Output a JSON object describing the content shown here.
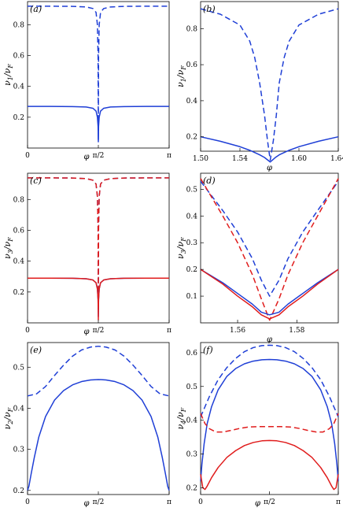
{
  "chart_data": [
    {
      "panel": "(a)",
      "type": "line",
      "xlabel": "φ",
      "ylabel": "v1/vF",
      "xaxis": "phi_range",
      "xlim": [
        0,
        3.14159
      ],
      "ylim": [
        0,
        0.95
      ],
      "xticks": [
        {
          "v": 0,
          "label": "0"
        },
        {
          "v": 1.5708,
          "label": "π/2"
        },
        {
          "v": 3.14159,
          "label": "π"
        }
      ],
      "yticks": [
        {
          "v": 0.2,
          "label": "0.2"
        },
        {
          "v": 0.4,
          "label": "0.4"
        },
        {
          "v": 0.6,
          "label": "0.6"
        },
        {
          "v": 0.8,
          "label": "0.8"
        }
      ],
      "series": [
        {
          "color": "#1f3fd6",
          "dash": false,
          "x": [
            0,
            0.5,
            1.0,
            1.3,
            1.45,
            1.52,
            1.55,
            1.565,
            1.5708,
            1.576,
            1.59,
            1.62,
            1.69,
            1.84,
            2.14,
            2.64,
            3.14159
          ],
          "y": [
            0.27,
            0.27,
            0.269,
            0.266,
            0.258,
            0.24,
            0.2,
            0.14,
            0.04,
            0.14,
            0.2,
            0.24,
            0.258,
            0.266,
            0.269,
            0.27,
            0.27
          ]
        },
        {
          "color": "#1f3fd6",
          "dash": true,
          "x": [
            0,
            0.5,
            1.0,
            1.3,
            1.45,
            1.52,
            1.55,
            1.565,
            1.5708,
            1.576,
            1.59,
            1.62,
            1.69,
            1.84,
            2.14,
            2.64,
            3.14159
          ],
          "y": [
            0.92,
            0.92,
            0.919,
            0.915,
            0.905,
            0.88,
            0.8,
            0.6,
            0.05,
            0.6,
            0.8,
            0.88,
            0.905,
            0.915,
            0.919,
            0.92,
            0.92
          ]
        }
      ]
    },
    {
      "panel": "(b)",
      "type": "line",
      "xlabel": "φ",
      "ylabel": "v1/vF",
      "xaxis": "linear",
      "xlim": [
        1.5,
        1.64
      ],
      "ylim": [
        0.12,
        0.95
      ],
      "xticks": [
        {
          "v": 1.5,
          "label": "1.50"
        },
        {
          "v": 1.54,
          "label": "1.54"
        },
        {
          "v": 1.6,
          "label": "1.60"
        },
        {
          "v": 1.64,
          "label": "1.64"
        }
      ],
      "yticks": [
        {
          "v": 0.2,
          "label": "0.2"
        },
        {
          "v": 0.4,
          "label": "0.4"
        },
        {
          "v": 0.6,
          "label": "0.6"
        },
        {
          "v": 0.8,
          "label": "0.8"
        }
      ],
      "series": [
        {
          "color": "#1f3fd6",
          "dash": false,
          "x": [
            1.5,
            1.52,
            1.54,
            1.55,
            1.56,
            1.565,
            1.5708,
            1.576,
            1.58,
            1.59,
            1.6,
            1.62,
            1.64
          ],
          "y": [
            0.2,
            0.175,
            0.145,
            0.125,
            0.1,
            0.085,
            0.06,
            0.085,
            0.1,
            0.125,
            0.145,
            0.175,
            0.2
          ]
        },
        {
          "color": "#1f3fd6",
          "dash": true,
          "x": [
            1.5,
            1.52,
            1.54,
            1.55,
            1.555,
            1.56,
            1.565,
            1.568,
            1.5708,
            1.574,
            1.577,
            1.58,
            1.585,
            1.59,
            1.6,
            1.62,
            1.64
          ],
          "y": [
            0.91,
            0.88,
            0.82,
            0.73,
            0.64,
            0.5,
            0.32,
            0.18,
            0.07,
            0.18,
            0.32,
            0.5,
            0.64,
            0.73,
            0.82,
            0.88,
            0.91
          ]
        }
      ]
    },
    {
      "panel": "(c)",
      "type": "line",
      "xlabel": "φ",
      "ylabel": "v3/vF",
      "xaxis": "phi_range",
      "xlim": [
        0,
        3.14159
      ],
      "ylim": [
        0,
        0.97
      ],
      "xticks": [
        {
          "v": 0,
          "label": "0"
        },
        {
          "v": 1.5708,
          "label": "π/2"
        },
        {
          "v": 3.14159,
          "label": "π"
        }
      ],
      "yticks": [
        {
          "v": 0.2,
          "label": "0.2"
        },
        {
          "v": 0.4,
          "label": "0.4"
        },
        {
          "v": 0.6,
          "label": "0.6"
        },
        {
          "v": 0.8,
          "label": "0.8"
        }
      ],
      "series": [
        {
          "color": "#1f3fd6",
          "dash": true,
          "x": [
            0,
            0.5,
            1.0,
            1.3,
            1.45,
            1.52,
            1.55,
            1.565,
            1.5708,
            1.576,
            1.59,
            1.62,
            1.69,
            1.84,
            2.14,
            2.64,
            3.14159
          ],
          "y": [
            0.94,
            0.94,
            0.939,
            0.935,
            0.925,
            0.9,
            0.82,
            0.62,
            0.08,
            0.62,
            0.82,
            0.9,
            0.925,
            0.935,
            0.939,
            0.94,
            0.94
          ]
        },
        {
          "color": "#e01c1c",
          "dash": true,
          "x": [
            0,
            0.5,
            1.0,
            1.3,
            1.45,
            1.52,
            1.55,
            1.565,
            1.5708,
            1.576,
            1.59,
            1.62,
            1.69,
            1.84,
            2.14,
            2.64,
            3.14159
          ],
          "y": [
            0.94,
            0.94,
            0.939,
            0.935,
            0.925,
            0.9,
            0.82,
            0.62,
            0.08,
            0.62,
            0.82,
            0.9,
            0.925,
            0.935,
            0.939,
            0.94,
            0.94
          ]
        },
        {
          "color": "#1f3fd6",
          "dash": false,
          "x": [
            0,
            0.5,
            1.0,
            1.3,
            1.45,
            1.52,
            1.55,
            1.565,
            1.5708,
            1.576,
            1.59,
            1.62,
            1.69,
            1.84,
            2.14,
            2.64,
            3.14159
          ],
          "y": [
            0.29,
            0.29,
            0.289,
            0.286,
            0.278,
            0.26,
            0.22,
            0.15,
            0.04,
            0.15,
            0.22,
            0.26,
            0.278,
            0.286,
            0.289,
            0.29,
            0.29
          ]
        },
        {
          "color": "#e01c1c",
          "dash": false,
          "x": [
            0,
            0.5,
            1.0,
            1.3,
            1.45,
            1.52,
            1.55,
            1.565,
            1.5708,
            1.576,
            1.59,
            1.62,
            1.69,
            1.84,
            2.14,
            2.64,
            3.14159
          ],
          "y": [
            0.29,
            0.29,
            0.289,
            0.286,
            0.278,
            0.26,
            0.22,
            0.15,
            0.02,
            0.15,
            0.22,
            0.26,
            0.278,
            0.286,
            0.289,
            0.29,
            0.29
          ]
        }
      ]
    },
    {
      "panel": "(d)",
      "type": "line",
      "xlabel": "φ",
      "ylabel": "v3/vF",
      "xaxis": "linear",
      "xlim": [
        1.5475,
        1.594
      ],
      "ylim": [
        0.0,
        0.56
      ],
      "xticks": [
        {
          "v": 1.56,
          "label": "1.56"
        },
        {
          "v": 1.58,
          "label": "1.58"
        }
      ],
      "yticks": [
        {
          "v": 0.1,
          "label": "0.1"
        },
        {
          "v": 0.2,
          "label": "0.2"
        },
        {
          "v": 0.3,
          "label": "0.3"
        },
        {
          "v": 0.4,
          "label": "0.4"
        },
        {
          "v": 0.5,
          "label": "0.5"
        }
      ],
      "series": [
        {
          "color": "#1f3fd6",
          "dash": true,
          "x": [
            1.5475,
            1.555,
            1.56,
            1.565,
            1.568,
            1.5708,
            1.574,
            1.577,
            1.582,
            1.587,
            1.594
          ],
          "y": [
            0.53,
            0.42,
            0.34,
            0.24,
            0.16,
            0.1,
            0.16,
            0.24,
            0.34,
            0.42,
            0.53
          ]
        },
        {
          "color": "#e01c1c",
          "dash": true,
          "x": [
            1.5475,
            1.555,
            1.56,
            1.565,
            1.568,
            1.5708,
            1.574,
            1.577,
            1.582,
            1.587,
            1.594
          ],
          "y": [
            0.54,
            0.4,
            0.3,
            0.18,
            0.09,
            0.01,
            0.09,
            0.18,
            0.3,
            0.4,
            0.54
          ]
        },
        {
          "color": "#1f3fd6",
          "dash": false,
          "x": [
            1.5475,
            1.555,
            1.56,
            1.565,
            1.568,
            1.5708,
            1.574,
            1.577,
            1.582,
            1.587,
            1.594
          ],
          "y": [
            0.2,
            0.15,
            0.11,
            0.07,
            0.04,
            0.03,
            0.04,
            0.07,
            0.11,
            0.15,
            0.2
          ]
        },
        {
          "color": "#e01c1c",
          "dash": false,
          "x": [
            1.5475,
            1.555,
            1.56,
            1.565,
            1.568,
            1.5708,
            1.574,
            1.577,
            1.582,
            1.587,
            1.594
          ],
          "y": [
            0.2,
            0.145,
            0.1,
            0.06,
            0.03,
            0.015,
            0.03,
            0.06,
            0.1,
            0.145,
            0.2
          ]
        }
      ]
    },
    {
      "panel": "(e)",
      "type": "line",
      "xlabel": "φ",
      "ylabel": "v2/vF",
      "xaxis": "phi_range",
      "xlim": [
        0,
        3.14159
      ],
      "ylim": [
        0.19,
        0.56
      ],
      "xticks": [
        {
          "v": 0,
          "label": "0"
        },
        {
          "v": 1.5708,
          "label": "π/2"
        },
        {
          "v": 3.14159,
          "label": "π"
        }
      ],
      "yticks": [
        {
          "v": 0.2,
          "label": "0.2"
        },
        {
          "v": 0.3,
          "label": "0.3"
        },
        {
          "v": 0.4,
          "label": "0.4"
        },
        {
          "v": 0.5,
          "label": "0.5"
        }
      ],
      "series": [
        {
          "color": "#1f3fd6",
          "dash": true,
          "x": [
            0,
            0.2,
            0.4,
            0.6,
            0.8,
            1.0,
            1.2,
            1.4,
            1.5708,
            1.74,
            1.94,
            2.14,
            2.34,
            2.54,
            2.74,
            2.94,
            3.14159
          ],
          "y": [
            0.43,
            0.435,
            0.453,
            0.48,
            0.505,
            0.527,
            0.542,
            0.549,
            0.551,
            0.549,
            0.542,
            0.527,
            0.505,
            0.48,
            0.453,
            0.435,
            0.43
          ]
        },
        {
          "color": "#1f3fd6",
          "dash": false,
          "x": [
            0,
            0.03,
            0.08,
            0.15,
            0.25,
            0.4,
            0.6,
            0.8,
            1.0,
            1.2,
            1.4,
            1.5708,
            1.74,
            1.94,
            2.14,
            2.34,
            2.54,
            2.74,
            2.89,
            2.99,
            3.06,
            3.11,
            3.14159
          ],
          "y": [
            0.2,
            0.21,
            0.24,
            0.28,
            0.33,
            0.38,
            0.42,
            0.443,
            0.457,
            0.465,
            0.469,
            0.47,
            0.469,
            0.465,
            0.457,
            0.443,
            0.42,
            0.38,
            0.33,
            0.28,
            0.24,
            0.21,
            0.2
          ]
        }
      ]
    },
    {
      "panel": "(f)",
      "type": "line",
      "xlabel": "φ",
      "ylabel": "v4/vF",
      "xaxis": "phi_range",
      "xlim": [
        0,
        3.14159
      ],
      "ylim": [
        0.18,
        0.63
      ],
      "xticks": [
        {
          "v": 0,
          "label": "0"
        },
        {
          "v": 1.5708,
          "label": "π/2"
        },
        {
          "v": 3.14159,
          "label": "π"
        }
      ],
      "yticks": [
        {
          "v": 0.2,
          "label": "0.2"
        },
        {
          "v": 0.3,
          "label": "0.3"
        },
        {
          "v": 0.4,
          "label": "0.4"
        },
        {
          "v": 0.5,
          "label": "0.5"
        },
        {
          "v": 0.6,
          "label": "0.6"
        }
      ],
      "series": [
        {
          "color": "#1f3fd6",
          "dash": true,
          "x": [
            0,
            0.1,
            0.2,
            0.4,
            0.6,
            0.8,
            1.0,
            1.2,
            1.4,
            1.5708,
            1.74,
            1.94,
            2.14,
            2.34,
            2.54,
            2.74,
            2.94,
            3.04,
            3.14159
          ],
          "y": [
            0.41,
            0.44,
            0.47,
            0.52,
            0.556,
            0.583,
            0.603,
            0.615,
            0.621,
            0.622,
            0.621,
            0.615,
            0.603,
            0.583,
            0.556,
            0.52,
            0.47,
            0.44,
            0.41
          ]
        },
        {
          "color": "#1f3fd6",
          "dash": false,
          "x": [
            0,
            0.03,
            0.08,
            0.15,
            0.25,
            0.4,
            0.6,
            0.8,
            1.0,
            1.2,
            1.4,
            1.5708,
            1.74,
            1.94,
            2.14,
            2.34,
            2.54,
            2.74,
            2.89,
            2.99,
            3.06,
            3.11,
            3.14159
          ],
          "y": [
            0.22,
            0.27,
            0.33,
            0.39,
            0.44,
            0.49,
            0.53,
            0.553,
            0.567,
            0.575,
            0.579,
            0.58,
            0.579,
            0.575,
            0.567,
            0.553,
            0.53,
            0.49,
            0.44,
            0.39,
            0.33,
            0.27,
            0.22
          ]
        },
        {
          "color": "#e01c1c",
          "dash": true,
          "x": [
            0,
            0.1,
            0.2,
            0.35,
            0.5,
            0.7,
            0.9,
            1.1,
            1.3,
            1.5708,
            1.84,
            2.04,
            2.24,
            2.44,
            2.64,
            2.79,
            2.94,
            3.04,
            3.14159
          ],
          "y": [
            0.42,
            0.39,
            0.375,
            0.365,
            0.365,
            0.37,
            0.376,
            0.38,
            0.381,
            0.381,
            0.381,
            0.38,
            0.376,
            0.37,
            0.365,
            0.365,
            0.375,
            0.39,
            0.42
          ]
        },
        {
          "color": "#e01c1c",
          "dash": false,
          "x": [
            0,
            0.05,
            0.1,
            0.15,
            0.25,
            0.4,
            0.6,
            0.8,
            1.0,
            1.2,
            1.4,
            1.5708,
            1.74,
            1.94,
            2.14,
            2.34,
            2.54,
            2.74,
            2.89,
            2.99,
            3.04,
            3.09,
            3.14159
          ],
          "y": [
            0.24,
            0.2,
            0.195,
            0.205,
            0.23,
            0.26,
            0.29,
            0.31,
            0.325,
            0.334,
            0.339,
            0.34,
            0.339,
            0.334,
            0.325,
            0.31,
            0.29,
            0.26,
            0.23,
            0.205,
            0.195,
            0.2,
            0.24
          ]
        }
      ]
    }
  ]
}
